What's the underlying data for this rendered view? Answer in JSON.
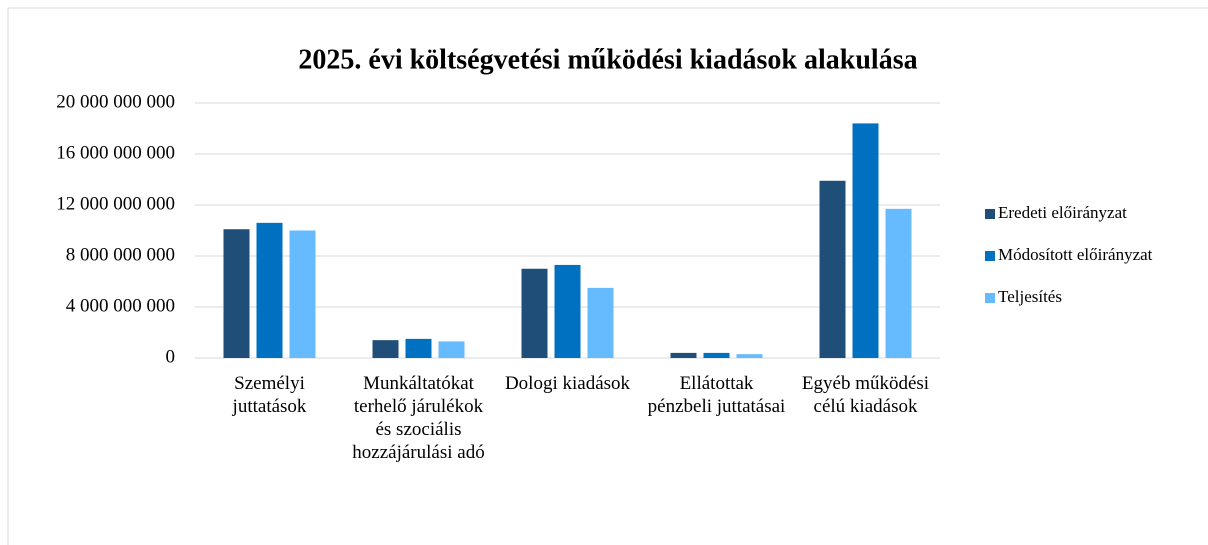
{
  "chart_data": {
    "type": "bar",
    "title": "2025. évi költségvetési működési kiadások alakulása",
    "categories": [
      "Személyi juttatások",
      "Munkáltatókat terhelő járulékok és szociális hozzájárulási adó",
      "Dologi kiadások",
      "Ellátottak pénzbeli juttatásai",
      "Egyéb működési célú kiadások"
    ],
    "series": [
      {
        "name": "Eredeti előirányzat",
        "color": "#1f4e79",
        "values": [
          10100000000,
          1400000000,
          7000000000,
          400000000,
          13900000000
        ]
      },
      {
        "name": "Módosított előirányzat",
        "color": "#0070c0",
        "values": [
          10600000000,
          1500000000,
          7300000000,
          400000000,
          18400000000
        ]
      },
      {
        "name": "Teljesítés",
        "color": "#66bbff",
        "values": [
          10000000000,
          1300000000,
          5500000000,
          300000000,
          11700000000
        ]
      }
    ],
    "ylim": [
      0,
      20000000000
    ],
    "yticks": [
      {
        "value": 0,
        "label": "0"
      },
      {
        "value": 4000000000,
        "label": "4 000 000 000"
      },
      {
        "value": 8000000000,
        "label": "8 000 000 000"
      },
      {
        "value": 12000000000,
        "label": "12 000 000 000"
      },
      {
        "value": 16000000000,
        "label": "16 000 000 000"
      },
      {
        "value": 20000000000,
        "label": "20 000 000 000"
      }
    ],
    "grid": true,
    "legend": "right"
  }
}
